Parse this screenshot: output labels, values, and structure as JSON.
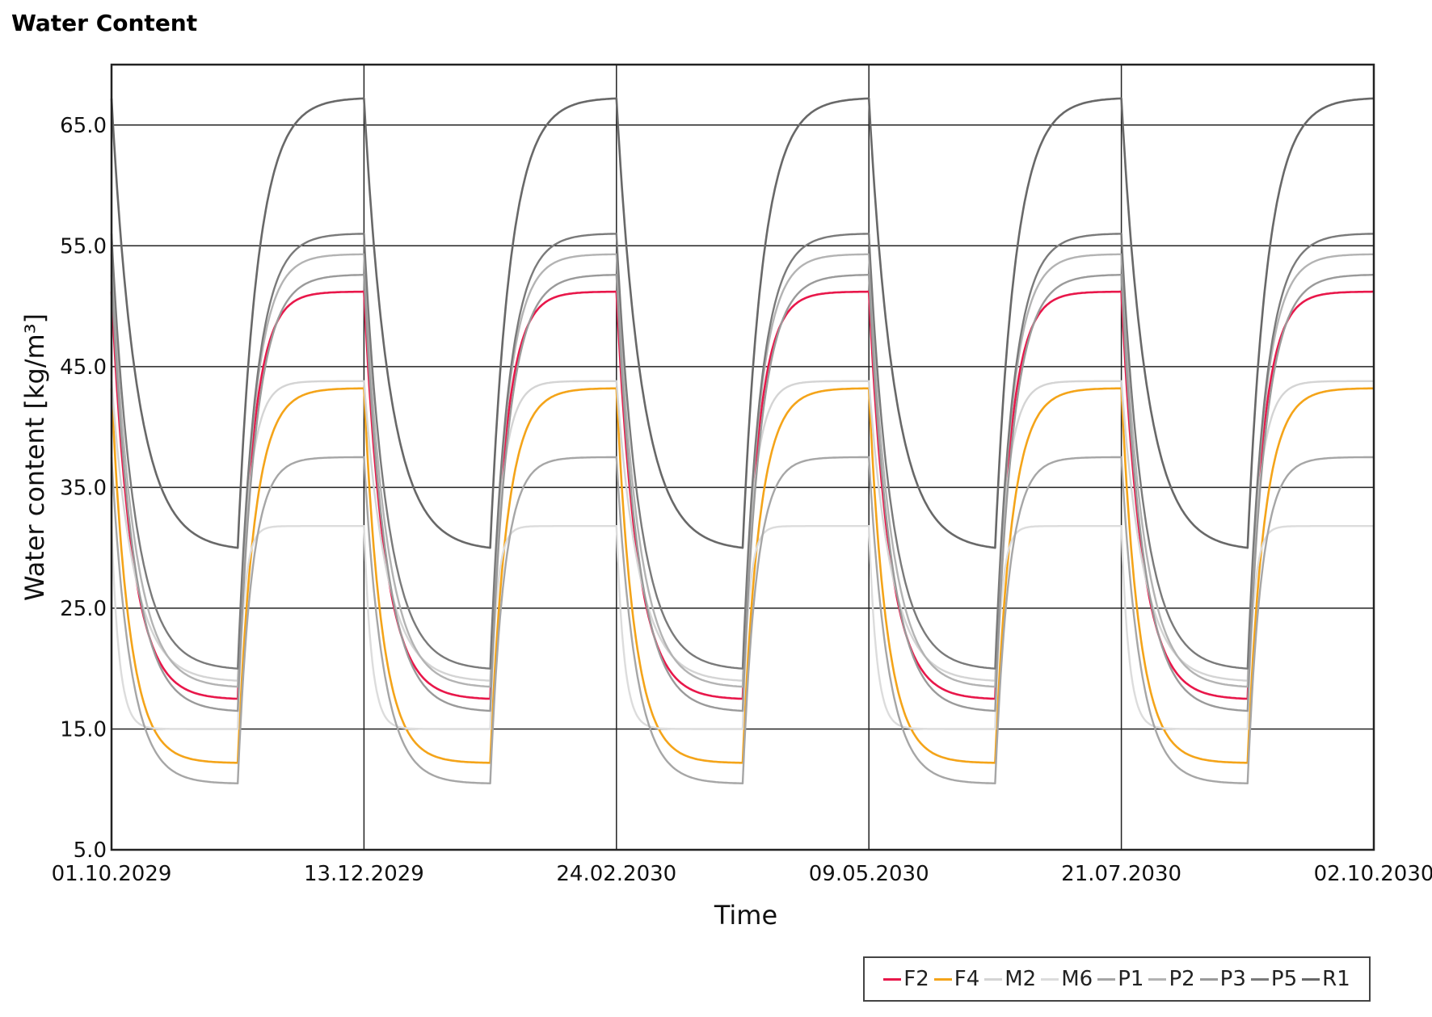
{
  "chart_data": {
    "type": "line",
    "title": "Water Content",
    "xlabel": "Time",
    "ylabel": "Water content [kg/m³]",
    "x_dates": [
      "01.10.2029",
      "13.12.2029",
      "24.02.2030",
      "09.05.2030",
      "21.07.2030",
      "02.10.2030"
    ],
    "y_ticks": [
      "5.0",
      "15.0",
      "25.0",
      "35.0",
      "45.0",
      "55.0",
      "65.0"
    ],
    "xlim": [
      "01.10.2029",
      "02.10.2030"
    ],
    "ylim": [
      5.0,
      70.0
    ],
    "grid": true,
    "legend_position": "bottom-right",
    "periods": 5,
    "period_days": 73,
    "series": [
      {
        "name": "F2",
        "color": "#e8174a",
        "width": 2.6,
        "min": 17.5,
        "max": 51.2,
        "tau_fall": 0.16,
        "tau_rise": 0.12
      },
      {
        "name": "F4",
        "color": "#f4a419",
        "width": 2.6,
        "min": 12.2,
        "max": 43.2,
        "tau_fall": 0.14,
        "tau_rise": 0.13
      },
      {
        "name": "M2",
        "color": "#d4d4d4",
        "width": 2.4,
        "min": 19.0,
        "max": 43.8,
        "tau_fall": 0.18,
        "tau_rise": 0.09
      },
      {
        "name": "M6",
        "color": "#dcdcdc",
        "width": 2.4,
        "min": 15.0,
        "max": 31.8,
        "tau_fall": 0.06,
        "tau_rise": 0.05
      },
      {
        "name": "P1",
        "color": "#a6a6a6",
        "width": 2.4,
        "min": 10.5,
        "max": 37.5,
        "tau_fall": 0.15,
        "tau_rise": 0.11
      },
      {
        "name": "P2",
        "color": "#b3b3b3",
        "width": 2.4,
        "min": 18.5,
        "max": 54.3,
        "tau_fall": 0.17,
        "tau_rise": 0.13
      },
      {
        "name": "P3",
        "color": "#9a9a9a",
        "width": 2.4,
        "min": 16.5,
        "max": 52.6,
        "tau_fall": 0.17,
        "tau_rise": 0.14
      },
      {
        "name": "P5",
        "color": "#7a7a7a",
        "width": 2.4,
        "min": 20.0,
        "max": 56.0,
        "tau_fall": 0.18,
        "tau_rise": 0.14
      },
      {
        "name": "R1",
        "color": "#686868",
        "width": 2.6,
        "min": 30.0,
        "max": 67.2,
        "tau_fall": 0.2,
        "tau_rise": 0.16
      }
    ]
  }
}
